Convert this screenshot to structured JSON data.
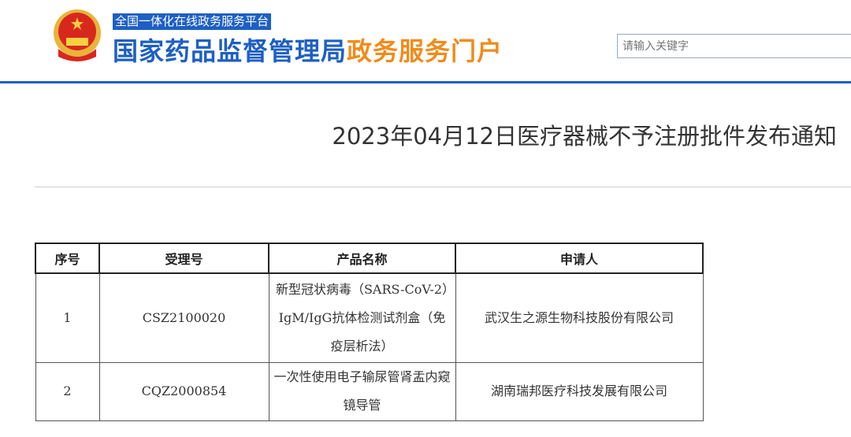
{
  "header": {
    "platform": "全国一体化在线政务服务平台",
    "site_name_blue": "国家药品监督管理局",
    "site_name_orange": "政务服务门户",
    "search_placeholder": "请输入关键字"
  },
  "article": {
    "title": "2023年04月12日医疗器械不予注册批件发布通知"
  },
  "table": {
    "headers": [
      "序号",
      "受理号",
      "产品名称",
      "申请人"
    ],
    "rows": [
      {
        "no": "1",
        "id": "CSZ2100020",
        "product": "新型冠状病毒（SARS-CoV-2）IgM/IgG抗体检测试剂盒（免疫层析法）",
        "applicant": "武汉生之源生物科技股份有限公司"
      },
      {
        "no": "2",
        "id": "CQZ2000854",
        "product": "一次性使用电子输尿管肾盂内窥镜导管",
        "applicant": "湖南瑞邦医疗科技发展有限公司"
      }
    ]
  },
  "colors": {
    "brand_blue": "#1d5fc4",
    "accent_orange": "#f08c1a"
  }
}
